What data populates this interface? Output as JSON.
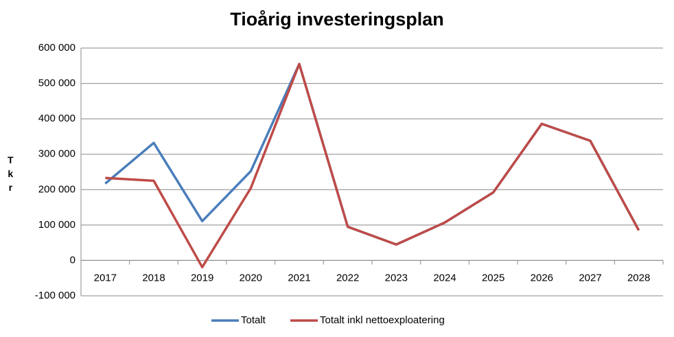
{
  "chart_data": {
    "type": "line",
    "title": "Tioårig investeringsplan",
    "y_label": "Tkr",
    "categories": [
      "2017",
      "2018",
      "2019",
      "2020",
      "2021",
      "2022",
      "2023",
      "2024",
      "2025",
      "2026",
      "2027",
      "2028"
    ],
    "series": [
      {
        "name": "Totalt",
        "color": "#4a7ebb",
        "values": [
          217000,
          332000,
          111000,
          252000,
          555000,
          95000,
          45000,
          107000,
          192000,
          386000,
          338000,
          85000
        ]
      },
      {
        "name": "Totalt inkl nettoexploatering",
        "color": "#be4b48",
        "values": [
          233000,
          225000,
          -19000,
          204000,
          555000,
          95000,
          45000,
          107000,
          192000,
          386000,
          338000,
          85000
        ]
      }
    ],
    "ylim": [
      -100000,
      600000
    ],
    "yticks": [
      {
        "value": -100000,
        "label": "-100 000"
      },
      0,
      {
        "value": 100000,
        "label": "100 000"
      },
      {
        "value": 200000,
        "label": "200 000"
      },
      {
        "value": 300000,
        "label": "300 000"
      },
      {
        "value": 400000,
        "label": "400 000"
      },
      {
        "value": 500000,
        "label": "500 000"
      },
      {
        "value": 600000,
        "label": "600 000"
      }
    ],
    "grid": true,
    "legend": "bottom"
  }
}
